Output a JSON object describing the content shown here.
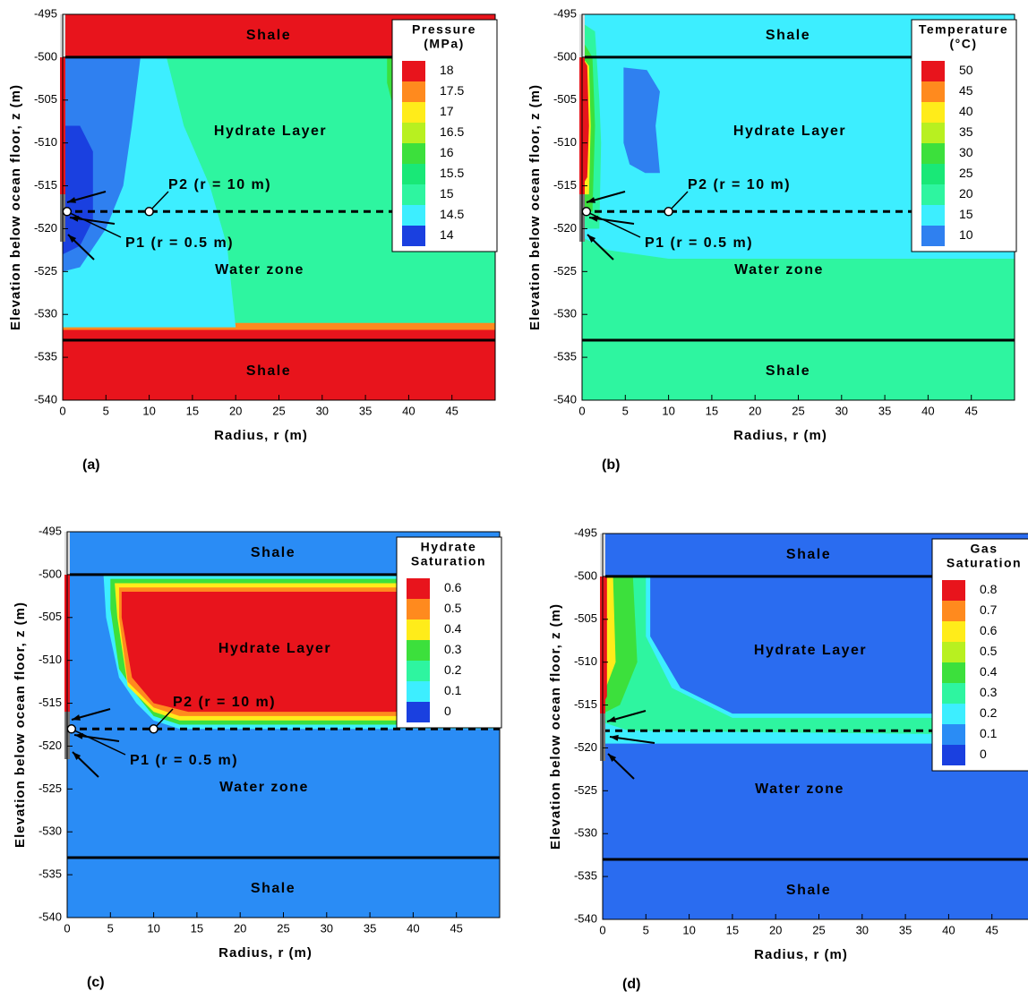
{
  "chart_data": [
    {
      "type": "contour",
      "panel_label": "(a)",
      "xlabel": "Radius, r (m)",
      "ylabel": "Elevation below ocean floor, z (m)",
      "xlim": [
        0,
        50
      ],
      "ylim": [
        -540,
        -495
      ],
      "xticks": [
        0,
        5,
        10,
        15,
        20,
        25,
        30,
        35,
        40,
        45
      ],
      "yticks": [
        -540,
        -535,
        -530,
        -525,
        -520,
        -515,
        -510,
        -505,
        -500,
        -495
      ],
      "legend_title": [
        "Pressure",
        "(MPa)"
      ],
      "levels": [
        18,
        17.5,
        17,
        16.5,
        16,
        15.5,
        15,
        14.5,
        14
      ],
      "colors": [
        "#e8141c",
        "#ff8a1e",
        "#ffec1a",
        "#b8f020",
        "#3ce03c",
        "#19e877",
        "#2ef5a0",
        "#3deeff",
        "#1a40e0"
      ],
      "regions": [
        {
          "color": "#2ef5a0",
          "r": [
            0,
            50,
            50,
            0
          ],
          "z": [
            -500,
            -500,
            -531.5,
            -531.5
          ]
        },
        {
          "color": "#e8141c",
          "r": [
            0,
            50,
            50,
            0
          ],
          "z": [
            -495,
            -495,
            -500,
            -500
          ]
        },
        {
          "color": "#ff8a1e",
          "r": [
            0,
            50,
            50,
            0
          ],
          "z": [
            -531,
            -531,
            -532,
            -532
          ]
        },
        {
          "color": "#e8141c",
          "r": [
            0,
            50,
            50,
            0
          ],
          "z": [
            -531.8,
            -531.8,
            -540,
            -540
          ]
        },
        {
          "color": "#3deeff",
          "r": [
            0,
            12,
            14,
            17,
            19,
            20,
            0
          ],
          "z": [
            -500,
            -500,
            -508,
            -515,
            -522,
            -531.5,
            -531.5
          ]
        },
        {
          "color": "#2f80f0",
          "r": [
            0,
            9,
            8,
            7,
            5,
            2,
            0
          ],
          "z": [
            -500,
            -500,
            -508,
            -515,
            -520,
            -524.5,
            -525
          ]
        },
        {
          "color": "#1a40e0",
          "r": [
            0,
            2,
            3.5,
            3.5,
            2,
            0
          ],
          "z": [
            -508,
            -508,
            -511,
            -519,
            -522,
            -523
          ]
        },
        {
          "color": "#3ce03c",
          "r": [
            37.5,
            39.5,
            39.5,
            38,
            37.5
          ],
          "z": [
            -500,
            -500,
            -506,
            -505,
            -503
          ]
        }
      ],
      "boundaries": [
        -500,
        -533
      ],
      "monitor_line": -518,
      "annotations": [
        "Shale",
        "Hydrate Layer",
        "Water zone",
        "Shale"
      ],
      "points": [
        {
          "name": "P1 (r = 0.5 m)",
          "r": 0.5,
          "z": -518
        },
        {
          "name": "P2 (r = 10 m)",
          "r": 10,
          "z": -518
        }
      ]
    },
    {
      "type": "contour",
      "panel_label": "(b)",
      "xlabel": "Radius, r (m)",
      "ylabel": "Elevation below ocean floor, z (m)",
      "xlim": [
        0,
        50
      ],
      "ylim": [
        -540,
        -495
      ],
      "xticks": [
        0,
        5,
        10,
        15,
        20,
        25,
        30,
        35,
        40,
        45
      ],
      "yticks": [
        -540,
        -535,
        -530,
        -525,
        -520,
        -515,
        -510,
        -505,
        -500,
        -495
      ],
      "legend_title": [
        "Temperature",
        "(°C)"
      ],
      "levels": [
        50,
        45,
        40,
        35,
        30,
        25,
        20,
        15,
        10
      ],
      "colors": [
        "#e8141c",
        "#ff8a1e",
        "#ffec1a",
        "#b8f020",
        "#3ce03c",
        "#19e877",
        "#2ef5a0",
        "#3deeff",
        "#2f80f0"
      ],
      "regions": [
        {
          "color": "#3deeff",
          "r": [
            0,
            50,
            50,
            0
          ],
          "z": [
            -495,
            -495,
            -523.5,
            -523.5
          ]
        },
        {
          "color": "#2ef5a0",
          "r": [
            0,
            3,
            10,
            50,
            50,
            0
          ],
          "z": [
            -521,
            -522.5,
            -523.5,
            -523.5,
            -540,
            -540
          ]
        },
        {
          "color": "#2f80f0",
          "r": [
            4.8,
            7.5,
            9,
            8.5,
            9,
            7.3,
            5.5,
            4.8
          ],
          "z": [
            -501.2,
            -501.5,
            -504,
            -508,
            -513.5,
            -513.5,
            -512.5,
            -510
          ]
        },
        {
          "color": "#2ef5a0",
          "r": [
            0,
            1.5,
            2,
            2.2,
            2,
            0
          ],
          "z": [
            -496,
            -497,
            -505,
            -510,
            -520,
            -520
          ]
        },
        {
          "color": "#3ce03c",
          "r": [
            0,
            1.2,
            1.5,
            1.2,
            0
          ],
          "z": [
            -498,
            -500,
            -508,
            -518,
            -518
          ]
        },
        {
          "color": "#ffec1a",
          "r": [
            0,
            0.8,
            1,
            0.8,
            0
          ],
          "z": [
            -500,
            -501,
            -508,
            -516,
            -516
          ]
        },
        {
          "color": "#e8141c",
          "r": [
            0,
            0.6,
            0.8,
            0.6,
            0
          ],
          "z": [
            -500,
            -501,
            -508,
            -514,
            -515
          ]
        }
      ],
      "boundaries": [
        -500,
        -533
      ],
      "monitor_line": -518,
      "annotations": [
        "Shale",
        "Hydrate Layer",
        "Water zone",
        "Shale"
      ],
      "points": [
        {
          "name": "P1 (r = 0.5 m)",
          "r": 0.5,
          "z": -518
        },
        {
          "name": "P2 (r = 10 m)",
          "r": 10,
          "z": -518
        }
      ]
    },
    {
      "type": "contour",
      "panel_label": "(c)",
      "xlabel": "Radius, r (m)",
      "ylabel": "Elevation below ocean floor, z (m)",
      "xlim": [
        0,
        50
      ],
      "ylim": [
        -540,
        -495
      ],
      "xticks": [
        0,
        5,
        10,
        15,
        20,
        25,
        30,
        35,
        40,
        45
      ],
      "yticks": [
        -540,
        -535,
        -530,
        -525,
        -520,
        -515,
        -510,
        -505,
        -500,
        -495
      ],
      "legend_title": [
        "Hydrate",
        "Saturation"
      ],
      "levels": [
        0.6,
        0.5,
        0.4,
        0.3,
        0.2,
        0.1,
        0
      ],
      "colors": [
        "#e8141c",
        "#ff8a1e",
        "#ffec1a",
        "#3ce03c",
        "#2ef5a0",
        "#3deeff",
        "#1a40e0"
      ],
      "regions": [
        {
          "color": "#2a8cf5",
          "r": [
            0,
            50,
            50,
            0
          ],
          "z": [
            -495,
            -495,
            -540,
            -540
          ]
        },
        {
          "color": "#3deeff",
          "r": [
            4.2,
            50,
            50,
            13,
            10,
            8,
            6,
            4.5
          ],
          "z": [
            -500,
            -500,
            -518,
            -518,
            -517,
            -515,
            -512,
            -505
          ]
        },
        {
          "color": "#3ce03c",
          "r": [
            5,
            50,
            50,
            13,
            10,
            8,
            6,
            5
          ],
          "z": [
            -500.5,
            -500.5,
            -517.5,
            -517.5,
            -516.5,
            -514,
            -511,
            -504
          ]
        },
        {
          "color": "#ffec1a",
          "r": [
            5.5,
            50,
            50,
            13,
            10,
            7,
            5.8
          ],
          "z": [
            -501,
            -501,
            -517,
            -517,
            -516,
            -513,
            -505
          ]
        },
        {
          "color": "#ff8a1e",
          "r": [
            6,
            50,
            50,
            13,
            10,
            7,
            6
          ],
          "z": [
            -501.5,
            -501.5,
            -516.5,
            -516.5,
            -515.5,
            -512.5,
            -505
          ]
        },
        {
          "color": "#e8141c",
          "r": [
            6.3,
            50,
            50,
            14,
            10,
            7.5,
            6.3
          ],
          "z": [
            -502,
            -502,
            -516,
            -516,
            -515,
            -512,
            -505
          ]
        }
      ],
      "boundaries": [
        -500,
        -533
      ],
      "monitor_line": -518,
      "annotations": [
        "Shale",
        "Hydrate Layer",
        "Water zone",
        "Shale"
      ],
      "points": [
        {
          "name": "P1 (r = 0.5 m)",
          "r": 0.5,
          "z": -518
        },
        {
          "name": "P2 (r = 10 m)",
          "r": 10,
          "z": -518
        }
      ]
    },
    {
      "type": "contour",
      "panel_label": "(d)",
      "xlabel": "Radius, r (m)",
      "ylabel": "Elevation below ocean floor, z (m)",
      "xlim": [
        0,
        50
      ],
      "ylim": [
        -540,
        -495
      ],
      "xticks": [
        0,
        5,
        10,
        15,
        20,
        25,
        30,
        35,
        40,
        45
      ],
      "yticks": [
        -540,
        -535,
        -530,
        -525,
        -520,
        -515,
        -510,
        -505,
        -500,
        -495
      ],
      "legend_title": [
        "Gas",
        "Saturation"
      ],
      "levels": [
        0.8,
        0.7,
        0.6,
        0.5,
        0.4,
        0.3,
        0.2,
        0.1,
        0
      ],
      "colors": [
        "#e8141c",
        "#ff8a1e",
        "#ffec1a",
        "#b8f020",
        "#3ce03c",
        "#2ef5a0",
        "#3deeff",
        "#2a8cf5",
        "#1a40e0"
      ],
      "regions": [
        {
          "color": "#2a6cf0",
          "r": [
            0,
            50,
            50,
            0
          ],
          "z": [
            -495,
            -495,
            -540,
            -540
          ]
        },
        {
          "color": "#3deeff",
          "r": [
            0,
            5.5,
            5.5,
            9,
            15,
            50,
            50,
            0
          ],
          "z": [
            -500,
            -500,
            -507,
            -513,
            -516,
            -516,
            -519.5,
            -519.5
          ]
        },
        {
          "color": "#2ef5a0",
          "r": [
            0,
            5,
            5,
            8,
            15,
            50,
            50,
            3,
            0
          ],
          "z": [
            -500,
            -500,
            -507,
            -513,
            -516.5,
            -516.5,
            -518.5,
            -518,
            -517
          ]
        },
        {
          "color": "#3ce03c",
          "r": [
            0,
            3.5,
            4,
            2,
            0
          ],
          "z": [
            -500,
            -500,
            -510,
            -515,
            -516
          ]
        },
        {
          "color": "#ffec1a",
          "r": [
            0,
            1.2,
            1.5,
            0
          ],
          "z": [
            -500,
            -500,
            -510,
            -514
          ]
        },
        {
          "color": "#e8141c",
          "r": [
            0,
            0.5,
            0.5,
            0
          ],
          "z": [
            -500,
            -500,
            -514,
            -515
          ]
        }
      ],
      "boundaries": [
        -500,
        -533
      ],
      "monitor_line": -518,
      "annotations": [
        "Shale",
        "Hydrate Layer",
        "Water zone",
        "Shale"
      ],
      "points": []
    }
  ]
}
